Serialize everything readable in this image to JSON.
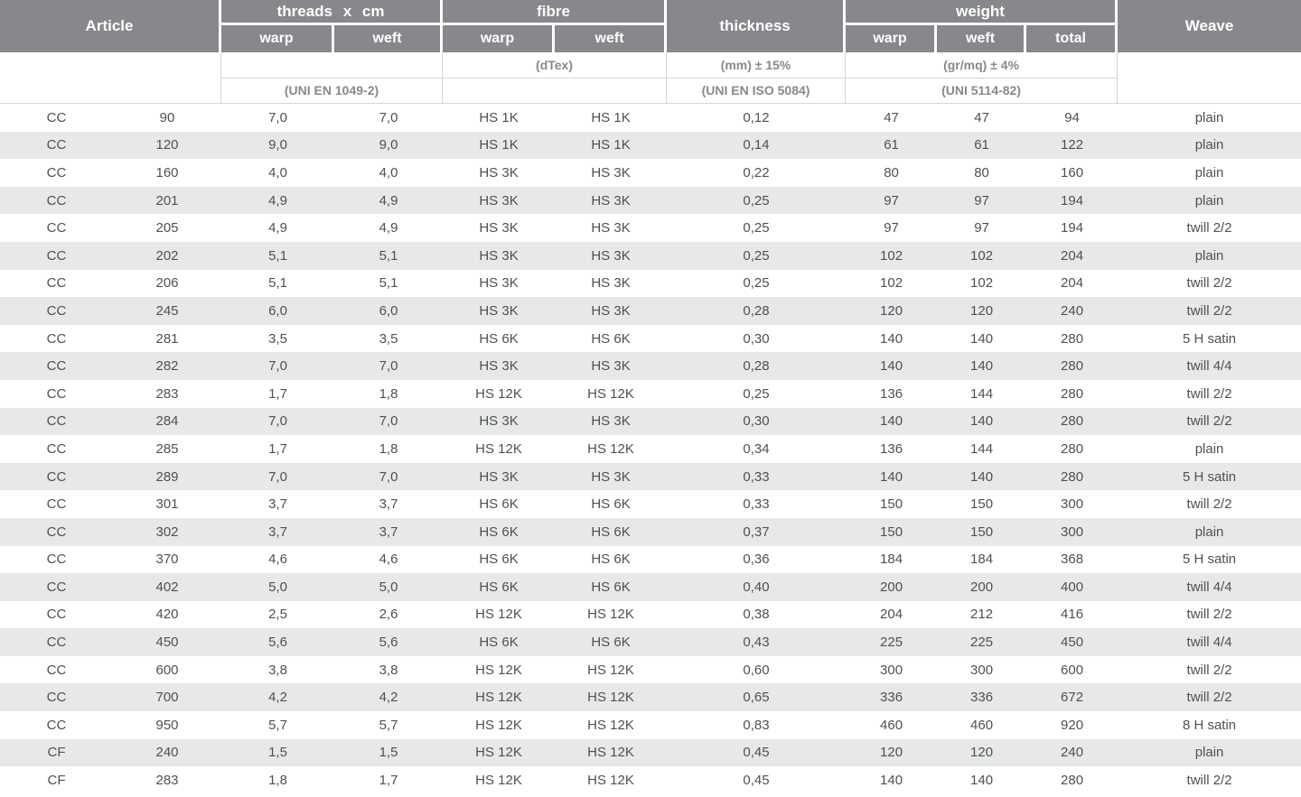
{
  "table": {
    "title": "carbon-fabric-specification-table",
    "headers": {
      "article": "Article",
      "threads": "threads x cm",
      "fibre": "fibre",
      "thickness": "thickness",
      "weight": "weight",
      "weave": "Weave",
      "warp": "warp",
      "weft": "weft",
      "total": "total"
    },
    "subheaders": {
      "fibre_unit": "(dTex)",
      "thickness_unit": "(mm) ± 15%",
      "weight_unit": "(gr/mq) ± 4%",
      "threads_standard": "(UNI EN 1049-2)",
      "thickness_standard": "(UNI EN ISO 5084)",
      "weight_standard": "(UNI 5114-82)"
    },
    "column_names": [
      "article-type",
      "article-number",
      "threads-warp",
      "threads-weft",
      "fibre-warp",
      "fibre-weft",
      "thickness",
      "weight-warp",
      "weight-weft",
      "weight-total",
      "weave"
    ],
    "rows": [
      [
        "CC",
        "90",
        "7,0",
        "7,0",
        "HS 1K",
        "HS 1K",
        "0,12",
        "47",
        "47",
        "94",
        "plain"
      ],
      [
        "CC",
        "120",
        "9,0",
        "9,0",
        "HS 1K",
        "HS 1K",
        "0,14",
        "61",
        "61",
        "122",
        "plain"
      ],
      [
        "CC",
        "160",
        "4,0",
        "4,0",
        "HS 3K",
        "HS 3K",
        "0,22",
        "80",
        "80",
        "160",
        "plain"
      ],
      [
        "CC",
        "201",
        "4,9",
        "4,9",
        "HS 3K",
        "HS 3K",
        "0,25",
        "97",
        "97",
        "194",
        "plain"
      ],
      [
        "CC",
        "205",
        "4,9",
        "4,9",
        "HS 3K",
        "HS 3K",
        "0,25",
        "97",
        "97",
        "194",
        "twill 2/2"
      ],
      [
        "CC",
        "202",
        "5,1",
        "5,1",
        "HS 3K",
        "HS 3K",
        "0,25",
        "102",
        "102",
        "204",
        "plain"
      ],
      [
        "CC",
        "206",
        "5,1",
        "5,1",
        "HS 3K",
        "HS 3K",
        "0,25",
        "102",
        "102",
        "204",
        "twill 2/2"
      ],
      [
        "CC",
        "245",
        "6,0",
        "6,0",
        "HS 3K",
        "HS 3K",
        "0,28",
        "120",
        "120",
        "240",
        "twill 2/2"
      ],
      [
        "CC",
        "281",
        "3,5",
        "3,5",
        "HS 6K",
        "HS 6K",
        "0,30",
        "140",
        "140",
        "280",
        "5 H satin"
      ],
      [
        "CC",
        "282",
        "7,0",
        "7,0",
        "HS 3K",
        "HS 3K",
        "0,28",
        "140",
        "140",
        "280",
        "twill 4/4"
      ],
      [
        "CC",
        "283",
        "1,7",
        "1,8",
        "HS 12K",
        "HS 12K",
        "0,25",
        "136",
        "144",
        "280",
        "twill 2/2"
      ],
      [
        "CC",
        "284",
        "7,0",
        "7,0",
        "HS 3K",
        "HS 3K",
        "0,30",
        "140",
        "140",
        "280",
        "twill 2/2"
      ],
      [
        "CC",
        "285",
        "1,7",
        "1,8",
        "HS 12K",
        "HS 12K",
        "0,34",
        "136",
        "144",
        "280",
        "plain"
      ],
      [
        "CC",
        "289",
        "7,0",
        "7,0",
        "HS 3K",
        "HS 3K",
        "0,33",
        "140",
        "140",
        "280",
        "5 H satin"
      ],
      [
        "CC",
        "301",
        "3,7",
        "3,7",
        "HS 6K",
        "HS 6K",
        "0,33",
        "150",
        "150",
        "300",
        "twill 2/2"
      ],
      [
        "CC",
        "302",
        "3,7",
        "3,7",
        "HS 6K",
        "HS 6K",
        "0,37",
        "150",
        "150",
        "300",
        "plain"
      ],
      [
        "CC",
        "370",
        "4,6",
        "4,6",
        "HS 6K",
        "HS 6K",
        "0,36",
        "184",
        "184",
        "368",
        "5 H satin"
      ],
      [
        "CC",
        "402",
        "5,0",
        "5,0",
        "HS 6K",
        "HS 6K",
        "0,40",
        "200",
        "200",
        "400",
        "twill 4/4"
      ],
      [
        "CC",
        "420",
        "2,5",
        "2,6",
        "HS 12K",
        "HS 12K",
        "0,38",
        "204",
        "212",
        "416",
        "twill 2/2"
      ],
      [
        "CC",
        "450",
        "5,6",
        "5,6",
        "HS 6K",
        "HS 6K",
        "0,43",
        "225",
        "225",
        "450",
        "twill 4/4"
      ],
      [
        "CC",
        "600",
        "3,8",
        "3,8",
        "HS 12K",
        "HS 12K",
        "0,60",
        "300",
        "300",
        "600",
        "twill 2/2"
      ],
      [
        "CC",
        "700",
        "4,2",
        "4,2",
        "HS 12K",
        "HS 12K",
        "0,65",
        "336",
        "336",
        "672",
        "twill 2/2"
      ],
      [
        "CC",
        "950",
        "5,7",
        "5,7",
        "HS 12K",
        "HS 12K",
        "0,83",
        "460",
        "460",
        "920",
        "8 H satin"
      ],
      [
        "CF",
        "240",
        "1,5",
        "1,5",
        "HS 12K",
        "HS 12K",
        "0,45",
        "120",
        "120",
        "240",
        "plain"
      ],
      [
        "CF",
        "283",
        "1,8",
        "1,7",
        "HS 12K",
        "HS 12K",
        "0,45",
        "140",
        "140",
        "280",
        "twill 2/2"
      ]
    ]
  },
  "colors": {
    "header_bg": "#86888b",
    "header_text": "#ffffff",
    "stripe_bg": "#e7e8e9",
    "subheader_text": "#87898c",
    "data_text": "#4e5052",
    "grid_line": "#d5d6d8"
  }
}
